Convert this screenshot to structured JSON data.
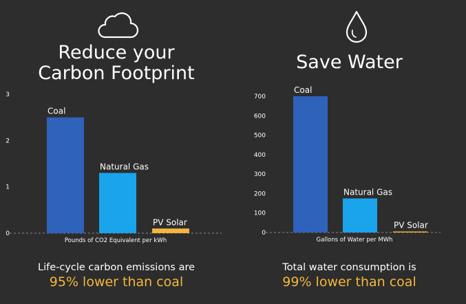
{
  "colors": {
    "background": "#2d2d2d",
    "coal": "#2f63bb",
    "natural_gas": "#19a4ec",
    "pv_solar": "#f5b73b",
    "highlight": "#f5b73b",
    "text": "#ffffff"
  },
  "carbon": {
    "icon": "cloud-icon",
    "title_line1": "Reduce your",
    "title_line2": "Carbon Footprint",
    "summary_line1": "Life-cycle carbon emissions are",
    "summary_line2": "95% lower than coal"
  },
  "water": {
    "icon": "water-drop-icon",
    "title": "Save Water",
    "summary_line1": "Total water consumption is",
    "summary_line2": "99% lower than coal"
  },
  "chart_data": [
    {
      "type": "bar",
      "title": "Reduce your Carbon Footprint",
      "categories": [
        "Coal",
        "Natural Gas",
        "PV Solar"
      ],
      "values": [
        2.5,
        1.3,
        0.1
      ],
      "xlabel": "Pounds of CO2 Equivalent per kWh",
      "ylabel": "",
      "ylim": [
        0,
        3
      ],
      "yticks": [
        0,
        1,
        2,
        3
      ],
      "grid": false,
      "colors": [
        "#2f63bb",
        "#19a4ec",
        "#f5b73b"
      ]
    },
    {
      "type": "bar",
      "title": "Save Water",
      "categories": [
        "Coal",
        "Natural Gas",
        "PV Solar"
      ],
      "values": [
        700,
        175,
        5
      ],
      "xlabel": "Gallons of Water per MWh",
      "ylabel": "",
      "ylim": [
        0,
        700
      ],
      "yticks": [
        0,
        100,
        200,
        300,
        400,
        500,
        600,
        700
      ],
      "grid": false,
      "colors": [
        "#2f63bb",
        "#19a4ec",
        "#f5b73b"
      ]
    }
  ]
}
